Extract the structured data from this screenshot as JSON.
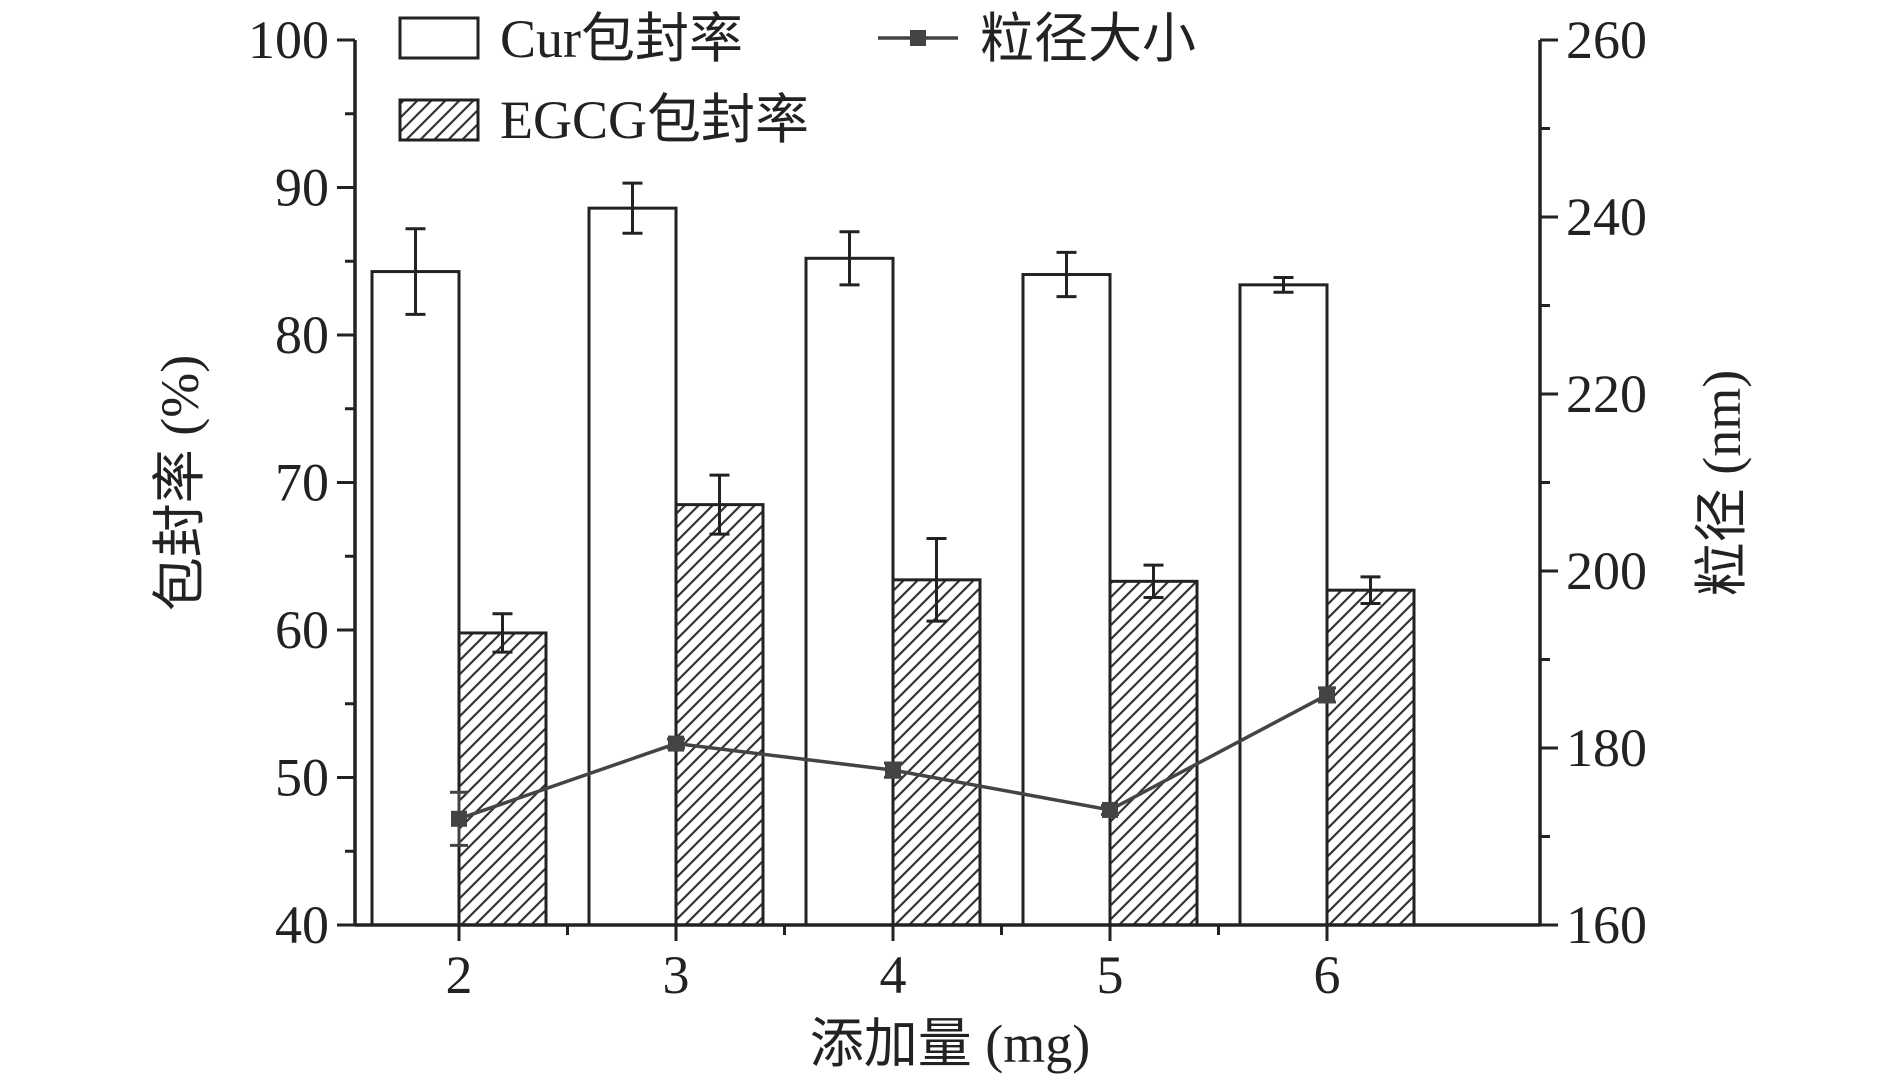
{
  "chart_data": {
    "type": "bar",
    "categories": [
      "2",
      "3",
      "4",
      "5",
      "6"
    ],
    "xlabel": "添加量 (mg)",
    "ylabel": "包封率 (%)",
    "y2label": "粒径 (nm)",
    "ylim": [
      40,
      100
    ],
    "y2lim": [
      160,
      260
    ],
    "yticks": [
      "40",
      "50",
      "60",
      "70",
      "80",
      "90",
      "100"
    ],
    "y2ticks": [
      "160",
      "180",
      "200",
      "220",
      "240",
      "260"
    ],
    "grid": false,
    "legend_position": "top",
    "series": [
      {
        "name": "Cur包封率",
        "type": "bar",
        "axis": "left",
        "pattern": "open",
        "values": [
          84.3,
          88.6,
          85.2,
          84.1,
          83.4
        ],
        "errors": [
          2.9,
          1.7,
          1.8,
          1.5,
          0.5
        ]
      },
      {
        "name": "EGCG包封率",
        "type": "bar",
        "axis": "left",
        "pattern": "hatched",
        "values": [
          59.8,
          68.5,
          63.4,
          63.3,
          62.7
        ],
        "errors": [
          1.3,
          2.0,
          2.8,
          1.1,
          0.9
        ]
      },
      {
        "name": "粒径大小",
        "type": "line",
        "axis": "right",
        "marker": "square",
        "values": [
          172.0,
          180.5,
          177.5,
          173.0,
          186.0
        ],
        "errors": [
          3.0,
          0.5,
          0.8,
          0.5,
          0.8
        ]
      }
    ]
  },
  "colors": {
    "axis": "#222222",
    "bar_fill": "#ffffff",
    "hatch": "#333333",
    "line": "#444444"
  }
}
